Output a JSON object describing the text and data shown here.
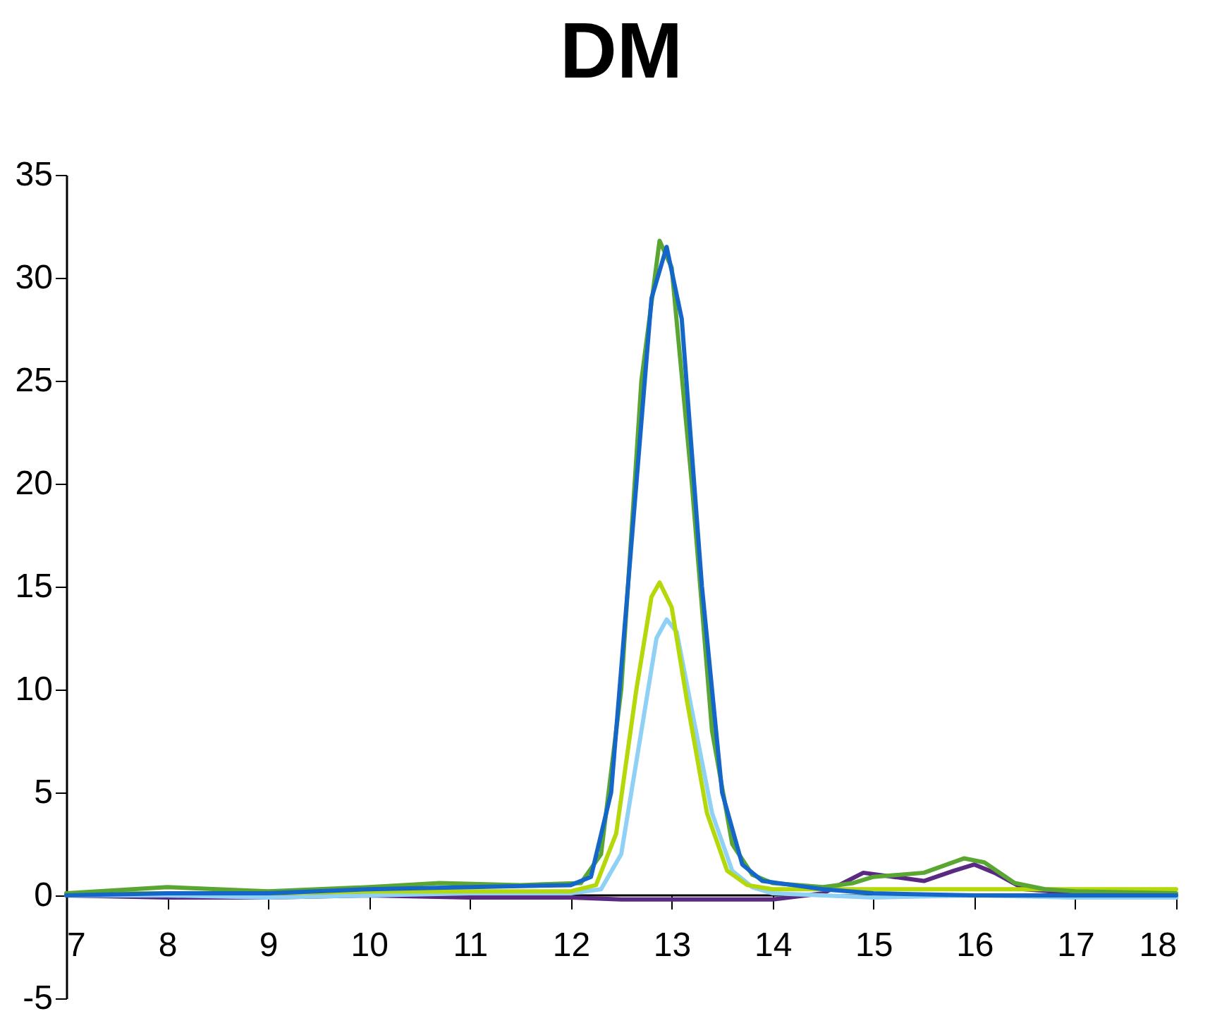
{
  "chart_data": {
    "type": "line",
    "title": "DM",
    "xlim": [
      7,
      18
    ],
    "xticks": [
      7,
      8,
      9,
      10,
      11,
      12,
      13,
      14,
      15,
      16,
      17,
      18
    ],
    "ylim": [
      -5,
      35
    ],
    "yticks": [
      -5,
      0,
      5,
      10,
      15,
      20,
      25,
      30,
      35
    ],
    "grid": false,
    "marker": "none",
    "line_style": "solid",
    "series": [
      {
        "color": "#5a2a82",
        "x": [
          7,
          8,
          9,
          10,
          11,
          12,
          12.5,
          13,
          13.5,
          14,
          14.5,
          14.7,
          14.9,
          15.2,
          15.5,
          15.8,
          16.0,
          16.2,
          16.5,
          17,
          18
        ],
        "values": [
          0,
          -0.1,
          -0.1,
          0,
          -0.1,
          -0.1,
          -0.2,
          -0.2,
          -0.2,
          -0.2,
          0.1,
          0.6,
          1.1,
          0.9,
          0.7,
          1.2,
          1.5,
          1.1,
          0.3,
          0.1,
          -0.1
        ]
      },
      {
        "color": "#8fd0f5",
        "x": [
          7,
          8,
          9,
          10,
          11,
          12,
          12.3,
          12.5,
          12.7,
          12.85,
          12.95,
          13.05,
          13.2,
          13.4,
          13.6,
          13.8,
          14,
          15,
          16,
          17,
          18
        ],
        "values": [
          0,
          0,
          -0.1,
          0,
          0.1,
          0.1,
          0.3,
          2,
          8,
          12.5,
          13.4,
          12.8,
          9,
          4,
          1.2,
          0.4,
          0.1,
          -0.1,
          0,
          -0.1,
          -0.1
        ]
      },
      {
        "color": "#b4d80a",
        "x": [
          7,
          8,
          9,
          10,
          11,
          12,
          12.25,
          12.45,
          12.65,
          12.8,
          12.88,
          13.0,
          13.15,
          13.35,
          13.55,
          13.75,
          14,
          15,
          16,
          17,
          18
        ],
        "values": [
          0.1,
          0.1,
          0.1,
          0.2,
          0.2,
          0.2,
          0.5,
          3,
          10,
          14.5,
          15.2,
          14,
          9.5,
          4,
          1.2,
          0.5,
          0.3,
          0.3,
          0.3,
          0.3,
          0.3
        ]
      },
      {
        "color": "#5aa632",
        "x": [
          7,
          8,
          9,
          10,
          10.7,
          11.5,
          12.1,
          12.3,
          12.5,
          12.7,
          12.88,
          13.0,
          13.2,
          13.4,
          13.6,
          13.8,
          14,
          14.5,
          14.8,
          15.0,
          15.5,
          15.9,
          16.1,
          16.4,
          16.7,
          17,
          18
        ],
        "values": [
          0.1,
          0.4,
          0.2,
          0.4,
          0.6,
          0.5,
          0.6,
          2,
          10,
          25,
          31.8,
          30.5,
          20,
          8,
          2.5,
          1,
          0.6,
          0.4,
          0.6,
          0.9,
          1.1,
          1.8,
          1.6,
          0.6,
          0.3,
          0.2,
          0.1
        ]
      },
      {
        "color": "#1467c8",
        "x": [
          7,
          8,
          9,
          10,
          11,
          12,
          12.2,
          12.4,
          12.6,
          12.8,
          12.95,
          13.1,
          13.3,
          13.5,
          13.7,
          13.9,
          14.2,
          14.5,
          15,
          16,
          17,
          18
        ],
        "values": [
          0,
          0.1,
          0.1,
          0.3,
          0.4,
          0.5,
          0.9,
          5,
          17,
          29,
          31.5,
          28,
          15,
          5,
          1.5,
          0.7,
          0.5,
          0.3,
          0.1,
          0,
          0,
          0
        ]
      }
    ]
  }
}
